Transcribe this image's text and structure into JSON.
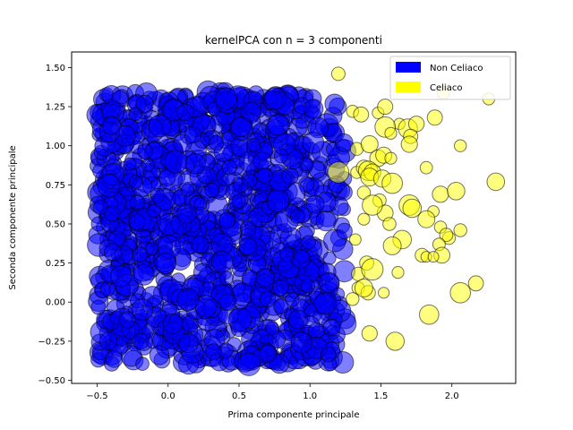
{
  "chart_data": {
    "type": "scatter",
    "title": "kernelPCA con n = 3 componenti",
    "xlabel": "Prima componente principale",
    "ylabel": "Seconda componente principale",
    "xlim": [
      -0.68,
      2.45
    ],
    "ylim": [
      -0.52,
      1.6
    ],
    "x_ticks": [
      -0.5,
      0.0,
      0.5,
      1.0,
      1.5,
      2.0
    ],
    "x_tick_labels": [
      "−0.5",
      "0.0",
      "0.5",
      "1.0",
      "1.5",
      "2.0"
    ],
    "y_ticks": [
      -0.5,
      -0.25,
      0.0,
      0.25,
      0.5,
      0.75,
      1.0,
      1.25,
      1.5
    ],
    "y_tick_labels": [
      "−0.50",
      "−0.25",
      "0.00",
      "0.25",
      "0.50",
      "0.75",
      "1.00",
      "1.25",
      "1.50"
    ],
    "grid": false,
    "legend_position": "top-right",
    "series": [
      {
        "name": "Non Celiaco",
        "color": "#0000ff",
        "region": {
          "x": [
            -0.5,
            1.25
          ],
          "y": [
            -0.4,
            1.35
          ]
        },
        "approx_point_count": 1200
      },
      {
        "name": "Celiaco",
        "color": "#ffff00",
        "points": [
          [
            1.2,
            1.46
          ],
          [
            2.26,
            1.3
          ],
          [
            1.94,
            1.34
          ],
          [
            1.3,
            1.22
          ],
          [
            1.36,
            1.2
          ],
          [
            1.48,
            1.21
          ],
          [
            1.53,
            1.25
          ],
          [
            1.63,
            1.14
          ],
          [
            1.69,
            1.11
          ],
          [
            1.75,
            1.14
          ],
          [
            1.88,
            1.18
          ],
          [
            1.53,
            1.12
          ],
          [
            1.57,
            1.08
          ],
          [
            1.71,
            1.06
          ],
          [
            1.33,
            0.98
          ],
          [
            1.42,
            1.01
          ],
          [
            1.48,
            0.92
          ],
          [
            1.52,
            0.94
          ],
          [
            1.57,
            0.92
          ],
          [
            1.7,
            1.01
          ],
          [
            2.06,
            1.0
          ],
          [
            1.2,
            0.83
          ],
          [
            1.33,
            0.83
          ],
          [
            1.38,
            0.86
          ],
          [
            1.41,
            0.84
          ],
          [
            1.44,
            0.83
          ],
          [
            1.42,
            0.8
          ],
          [
            1.51,
            0.79
          ],
          [
            1.58,
            0.76
          ],
          [
            1.82,
            0.86
          ],
          [
            1.38,
            0.7
          ],
          [
            1.49,
            0.65
          ],
          [
            1.53,
            0.57
          ],
          [
            1.44,
            0.62
          ],
          [
            1.7,
            0.62
          ],
          [
            1.72,
            0.6
          ],
          [
            1.92,
            0.69
          ],
          [
            2.03,
            0.71
          ],
          [
            2.31,
            0.77
          ],
          [
            1.38,
            0.53
          ],
          [
            1.56,
            0.5
          ],
          [
            1.87,
            0.58
          ],
          [
            1.92,
            0.48
          ],
          [
            1.82,
            0.53
          ],
          [
            2.06,
            0.46
          ],
          [
            1.32,
            0.4
          ],
          [
            1.65,
            0.4
          ],
          [
            1.58,
            0.36
          ],
          [
            1.79,
            0.3
          ],
          [
            1.98,
            0.41
          ],
          [
            1.96,
            0.43
          ],
          [
            1.91,
            0.37
          ],
          [
            1.93,
            0.3
          ],
          [
            1.4,
            0.25
          ],
          [
            1.82,
            0.29
          ],
          [
            1.34,
            0.18
          ],
          [
            1.44,
            0.21
          ],
          [
            1.62,
            0.19
          ],
          [
            1.87,
            0.29
          ],
          [
            1.34,
            0.09
          ],
          [
            1.41,
            0.06
          ],
          [
            1.38,
            0.09
          ],
          [
            2.17,
            0.12
          ],
          [
            1.52,
            0.06
          ],
          [
            2.06,
            0.06
          ],
          [
            1.3,
            0.02
          ],
          [
            1.84,
            -0.08
          ],
          [
            1.42,
            -0.2
          ],
          [
            1.6,
            -0.25
          ]
        ]
      }
    ]
  }
}
